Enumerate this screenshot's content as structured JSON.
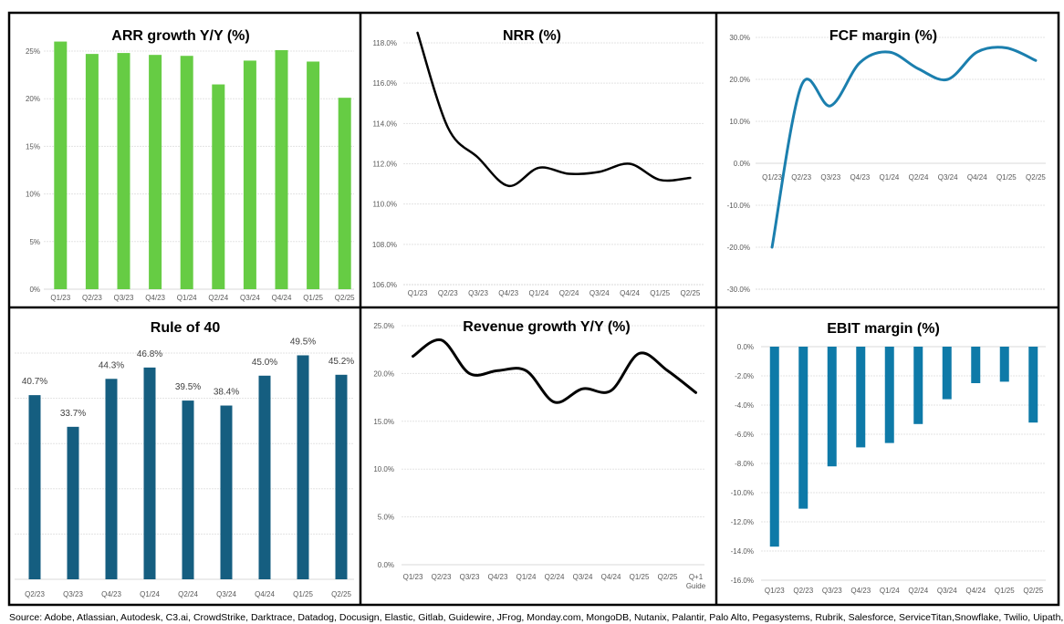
{
  "chart_data": [
    {
      "type": "bar",
      "title": "ARR growth Y/Y (%)",
      "categories": [
        "Q1/23",
        "Q2/23",
        "Q3/23",
        "Q4/23",
        "Q1/24",
        "Q2/24",
        "Q3/24",
        "Q4/24",
        "Q1/25",
        "Q2/25"
      ],
      "values": [
        26.0,
        24.7,
        24.8,
        24.6,
        24.5,
        21.5,
        24.0,
        25.1,
        23.9,
        20.1
      ],
      "ylim": [
        0,
        25
      ],
      "yticks": [
        0,
        5,
        10,
        15,
        20,
        25
      ],
      "ytick_labels": [
        "0%",
        "5%",
        "10%",
        "15%",
        "20%",
        "25%"
      ],
      "color": "#66CC44",
      "xlabel": "",
      "ylabel": "",
      "grid": true
    },
    {
      "type": "line",
      "title": "NRR (%)",
      "categories": [
        "Q1/23",
        "Q2/23",
        "Q3/23",
        "Q4/23",
        "Q1/24",
        "Q2/24",
        "Q3/24",
        "Q4/24",
        "Q1/25",
        "Q2/25"
      ],
      "values": [
        118.5,
        113.8,
        112.3,
        110.9,
        111.8,
        111.5,
        111.6,
        112.0,
        111.2,
        111.3
      ],
      "ylim": [
        106,
        118
      ],
      "yticks": [
        106,
        108,
        110,
        112,
        114,
        116,
        118
      ],
      "ytick_labels": [
        "106.0%",
        "108.0%",
        "110.0%",
        "112.0%",
        "114.0%",
        "116.0%",
        "118.0%"
      ],
      "color": "#000000",
      "xlabel": "",
      "ylabel": "",
      "grid": true
    },
    {
      "type": "line",
      "title": "FCF margin (%)",
      "categories": [
        "Q1/23",
        "Q2/23",
        "Q3/23",
        "Q4/23",
        "Q1/24",
        "Q2/24",
        "Q3/24",
        "Q4/24",
        "Q1/25",
        "Q2/25"
      ],
      "values": [
        -20.0,
        18.5,
        13.7,
        24.0,
        26.5,
        22.5,
        20.0,
        26.5,
        27.5,
        24.5
      ],
      "ylim": [
        -30,
        30
      ],
      "yticks": [
        -30,
        -20,
        -10,
        0,
        10,
        20,
        30
      ],
      "ytick_labels": [
        "-30.0%",
        "-20.0%",
        "-10.0%",
        "0.0%",
        "10.0%",
        "20.0%",
        "30.0%"
      ],
      "color": "#1B7FAE",
      "xlabel": "",
      "ylabel": "",
      "grid": true
    },
    {
      "type": "bar",
      "title": "Rule of 40",
      "categories": [
        "Q2/23",
        "Q3/23",
        "Q4/23",
        "Q1/24",
        "Q2/24",
        "Q3/24",
        "Q4/24",
        "Q1/25",
        "Q2/25"
      ],
      "values": [
        40.7,
        33.7,
        44.3,
        46.8,
        39.5,
        38.4,
        45.0,
        49.5,
        45.2
      ],
      "data_labels": [
        "40.7%",
        "33.7%",
        "44.3%",
        "46.8%",
        "39.5%",
        "38.4%",
        "45.0%",
        "49.5%",
        "45.2%"
      ],
      "ylim": [
        0,
        50
      ],
      "yticks": [
        0,
        10,
        20,
        30,
        40,
        50
      ],
      "ytick_labels": [],
      "color": "#155E80",
      "xlabel": "",
      "ylabel": "",
      "grid": true
    },
    {
      "type": "line",
      "title": "Revenue growth Y/Y (%)",
      "categories": [
        "Q1/23",
        "Q2/23",
        "Q3/23",
        "Q4/23",
        "Q1/24",
        "Q2/24",
        "Q3/24",
        "Q4/24",
        "Q1/25",
        "Q2/25",
        "Q+1 Guide"
      ],
      "values": [
        21.8,
        23.5,
        20.0,
        20.3,
        20.3,
        17.0,
        18.4,
        18.2,
        22.1,
        20.3,
        18.0
      ],
      "ylim": [
        0,
        25
      ],
      "yticks": [
        0,
        5,
        10,
        15,
        20,
        25
      ],
      "ytick_labels": [
        "0.0%",
        "5.0%",
        "10.0%",
        "15.0%",
        "20.0%",
        "25.0%"
      ],
      "color": "#000000",
      "xlabel": "",
      "ylabel": "",
      "grid": true
    },
    {
      "type": "bar",
      "title": "EBIT margin (%)",
      "categories": [
        "Q1/23",
        "Q2/23",
        "Q3/23",
        "Q4/23",
        "Q1/24",
        "Q2/24",
        "Q3/24",
        "Q4/24",
        "Q1/25",
        "Q2/25"
      ],
      "values": [
        -13.7,
        -11.1,
        -8.2,
        -6.9,
        -6.6,
        -5.3,
        -3.6,
        -2.5,
        -2.4,
        -5.2
      ],
      "ylim": [
        -16,
        0
      ],
      "yticks": [
        -16,
        -14,
        -12,
        -10,
        -8,
        -6,
        -4,
        -2,
        0
      ],
      "ytick_labels": [
        "-16.0%",
        "-14.0%",
        "-12.0%",
        "-10.0%",
        "-8.0%",
        "-6.0%",
        "-4.0%",
        "-2.0%",
        "0.0%"
      ],
      "color": "#0E7AA8",
      "xlabel": "",
      "ylabel": "",
      "grid": true
    }
  ],
  "source": "Source: Adobe, Atlassian, Autodesk, C3.ai, CrowdStrike, Darktrace, Datadog, Docusign, Elastic, Gitlab, Guidewire, JFrog, Monday.com, MongoDB, Nutanix, Palantir, Palo Alto, Pegasystems, Rubrik, Salesforce, ServiceTitan,Snowflake, Twilio, Uipath, Workday, Zscaler"
}
